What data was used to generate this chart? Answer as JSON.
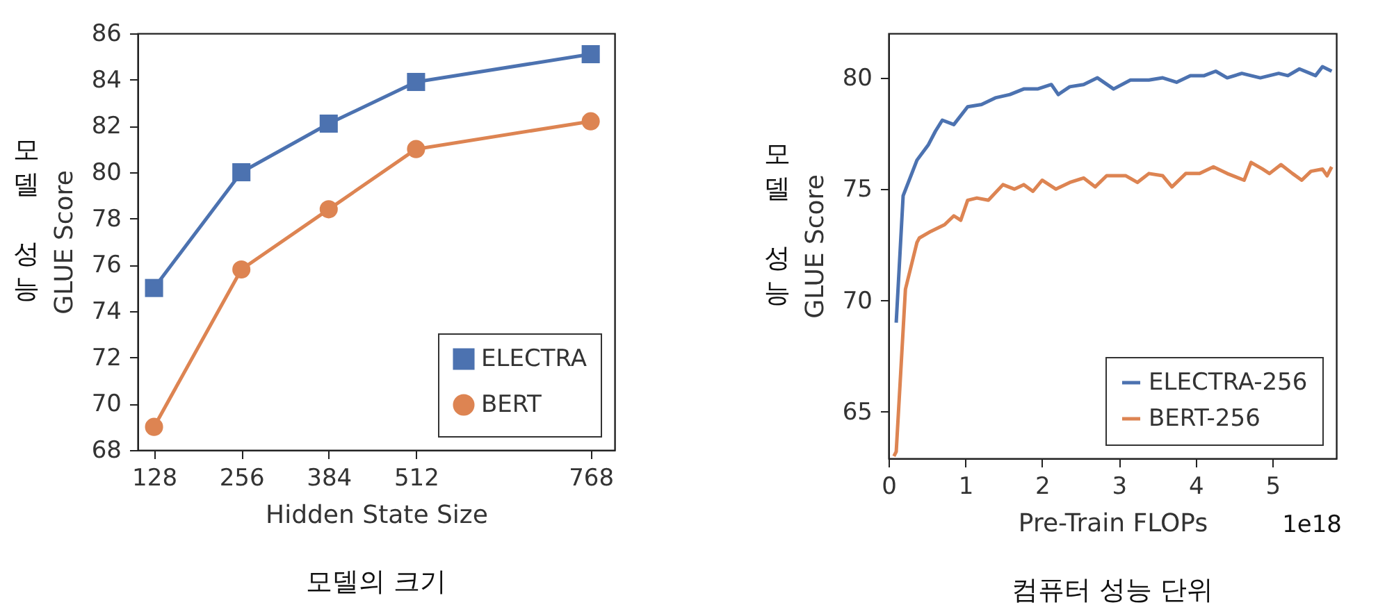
{
  "chart_data": [
    {
      "type": "line",
      "xlabel": "Hidden State Size",
      "ylabel": "GLUE Score",
      "x": [
        128,
        256,
        384,
        512,
        768
      ],
      "series": [
        {
          "name": "ELECTRA",
          "color": "#4c72b0",
          "marker": "square",
          "values": [
            75.0,
            80.0,
            82.1,
            83.9,
            85.1
          ]
        },
        {
          "name": "BERT",
          "color": "#dd8452",
          "marker": "circle",
          "values": [
            69.0,
            75.8,
            78.4,
            81.0,
            82.2
          ]
        }
      ],
      "xlim": [
        104,
        803
      ],
      "xticks": [
        128,
        256,
        384,
        512,
        768
      ],
      "ylim": [
        68,
        86
      ],
      "yticks": [
        68,
        70,
        72,
        74,
        76,
        78,
        80,
        82,
        84,
        86
      ],
      "grid": false,
      "legend": "bottom right",
      "annotations": [
        "모델 성능",
        "모델의 크기"
      ]
    },
    {
      "type": "line",
      "xlabel": "Pre-Train FLOPs",
      "ylabel": "GLUE Score",
      "series": [
        {
          "name": "ELECTRA-256",
          "color": "#4c72b0",
          "x": [
            0.1,
            0.19,
            0.37,
            0.52,
            0.61,
            0.7,
            0.85,
            1.03,
            1.21,
            1.39,
            1.58,
            1.76,
            1.94,
            2.12,
            2.21,
            2.36,
            2.54,
            2.72,
            2.93,
            3.15,
            3.39,
            3.57,
            3.75,
            3.93,
            4.11,
            4.26,
            4.41,
            4.6,
            4.84,
            5.08,
            5.2,
            5.35,
            5.56,
            5.65,
            5.77
          ],
          "values": [
            69.0,
            74.7,
            76.3,
            77.0,
            77.6,
            78.1,
            77.9,
            78.7,
            78.8,
            79.1,
            79.25,
            79.5,
            79.5,
            79.7,
            79.25,
            79.6,
            79.7,
            80.0,
            79.5,
            79.9,
            79.9,
            80.0,
            79.8,
            80.1,
            80.1,
            80.3,
            80.0,
            80.2,
            80.0,
            80.2,
            80.1,
            80.4,
            80.1,
            80.5,
            80.3
          ]
        },
        {
          "name": "BERT-256",
          "color": "#dd8452",
          "x": [
            0.07,
            0.1,
            0.22,
            0.37,
            0.4,
            0.55,
            0.73,
            0.85,
            0.94,
            1.03,
            1.15,
            1.3,
            1.49,
            1.64,
            1.76,
            1.88,
            2.0,
            2.18,
            2.36,
            2.54,
            2.69,
            2.84,
            3.09,
            3.24,
            3.39,
            3.57,
            3.69,
            3.87,
            4.05,
            4.23,
            4.41,
            4.63,
            4.72,
            4.87,
            4.96,
            5.11,
            5.26,
            5.38,
            5.5,
            5.65,
            5.71,
            5.77
          ],
          "values": [
            63.0,
            63.2,
            70.5,
            72.6,
            72.8,
            73.1,
            73.4,
            73.8,
            73.6,
            74.5,
            74.6,
            74.5,
            75.2,
            75.0,
            75.2,
            74.9,
            75.4,
            75.0,
            75.3,
            75.5,
            75.1,
            75.6,
            75.6,
            75.3,
            75.7,
            75.6,
            75.1,
            75.7,
            75.7,
            76.0,
            75.7,
            75.4,
            76.2,
            75.9,
            75.7,
            76.1,
            75.7,
            75.4,
            75.8,
            75.9,
            75.6,
            76.0
          ]
        }
      ],
      "xlim": [
        0,
        5.83
      ],
      "xticks": [
        0,
        1,
        2,
        3,
        4,
        5
      ],
      "ylim": [
        62.9,
        82
      ],
      "yticks": [
        65,
        70,
        75,
        80
      ],
      "grid": false,
      "legend": "bottom right",
      "annotations": [
        "모델 성능",
        "컴퓨터 성능 단위",
        "1e18"
      ]
    }
  ]
}
